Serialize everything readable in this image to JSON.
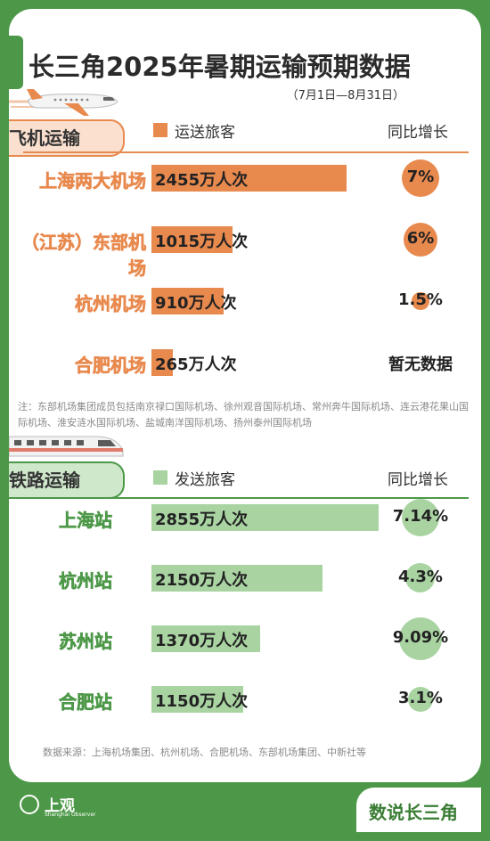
{
  "title": "长三角2025年暑期运输预期数据",
  "subtitle": "（7月1日—8月31日）",
  "colors": {
    "air": "#e8894e",
    "rail": "#4d9848",
    "rail_light": "#a9d4a2",
    "air_light": "#fbe0cf"
  },
  "air": {
    "section_label": "飞机运输",
    "legend": "运送旅客",
    "yoy_header": "同比增长",
    "note": "注：东部机场集团成员包括南京禄口国际机场、徐州观音国际机场、常州奔牛国际机场、连云港花果山国际机场、淮安涟水国际机场、盐城南洋国际机场、扬州泰州国际机场"
  },
  "rail": {
    "section_label": "铁路运输",
    "legend": "发送旅客",
    "yoy_header": "同比增长"
  },
  "source": "数据来源：上海机场集团、杭州机场、合肥机场、东部机场集团、中新社等",
  "footer": {
    "logo_text": "上观",
    "logo_sub": "Shanghai Observer",
    "brand": "数说长三角"
  },
  "chart_data": [
    {
      "type": "bar",
      "title": "飞机运输",
      "series_label": "运送旅客",
      "categories": [
        "上海两大机场",
        "（江苏）东部机场",
        "杭州机场",
        "合肥机场"
      ],
      "values": [
        2455,
        1015,
        910,
        265
      ],
      "value_labels": [
        "2455万人次",
        "1015万人次",
        "910万人次",
        "265万人次"
      ],
      "yoy": [
        7,
        6,
        1.5,
        null
      ],
      "yoy_labels": [
        "7%",
        "6%",
        "1.5%",
        "暂无数据"
      ]
    },
    {
      "type": "bar",
      "title": "铁路运输",
      "series_label": "发送旅客",
      "categories": [
        "上海站",
        "杭州站",
        "苏州站",
        "合肥站"
      ],
      "values": [
        2855,
        2150,
        1370,
        1150
      ],
      "value_labels": [
        "2855万人次",
        "2150万人次",
        "1370万人次",
        "1150万人次"
      ],
      "yoy": [
        7.14,
        4.3,
        9.09,
        3.1
      ],
      "yoy_labels": [
        "7.14%",
        "4.3%",
        "9.09%",
        "3.1%"
      ]
    }
  ]
}
